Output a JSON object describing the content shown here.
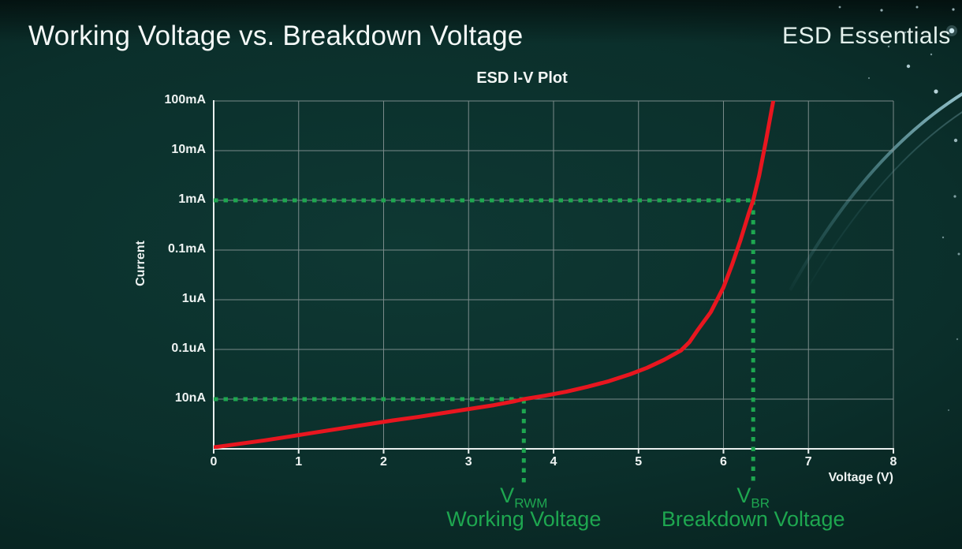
{
  "slide": {
    "title": "Working Voltage vs. Breakdown Voltage",
    "brand": "ESD Essentials"
  },
  "chart_data": {
    "type": "line",
    "title": "ESD I-V Plot",
    "xlabel": "Voltage (V)",
    "ylabel": "Current",
    "xlim": [
      0,
      8
    ],
    "x_tick_labels": [
      "0",
      "1",
      "2",
      "3",
      "4",
      "5",
      "6",
      "7",
      "8"
    ],
    "y_scale": "log",
    "grid": true,
    "legend": false,
    "y_gridlines_top_to_bottom": [
      {
        "index": 7,
        "label": "100mA"
      },
      {
        "index": 6,
        "label": "10mA"
      },
      {
        "index": 5,
        "label": "1mA"
      },
      {
        "index": 4,
        "label": "0.1mA"
      },
      {
        "index": 3,
        "label": "1uA"
      },
      {
        "index": 2,
        "label": "0.1uA"
      },
      {
        "index": 1,
        "label": "10nA"
      }
    ],
    "point_format": "[voltage_V, y_gridline_index] where index 0 = bottom axis line and 7 = top gridline (log-spaced current levels)",
    "series": [
      {
        "name": "ESD device I-V curve",
        "color": "#e8161f",
        "points": [
          [
            0,
            0.03
          ],
          [
            0.3,
            0.1
          ],
          [
            0.6,
            0.17
          ],
          [
            0.9,
            0.25
          ],
          [
            1.2,
            0.33
          ],
          [
            1.5,
            0.41
          ],
          [
            1.8,
            0.49
          ],
          [
            2.1,
            0.57
          ],
          [
            2.4,
            0.64
          ],
          [
            2.7,
            0.72
          ],
          [
            3.0,
            0.8
          ],
          [
            3.3,
            0.88
          ],
          [
            3.55,
            0.96
          ],
          [
            3.65,
            1.0
          ],
          [
            3.9,
            1.07
          ],
          [
            4.15,
            1.15
          ],
          [
            4.4,
            1.25
          ],
          [
            4.65,
            1.36
          ],
          [
            4.9,
            1.5
          ],
          [
            5.1,
            1.63
          ],
          [
            5.3,
            1.79
          ],
          [
            5.5,
            1.98
          ],
          [
            5.6,
            2.15
          ],
          [
            5.7,
            2.4
          ],
          [
            5.85,
            2.75
          ],
          [
            6.0,
            3.25
          ],
          [
            6.1,
            3.7
          ],
          [
            6.2,
            4.2
          ],
          [
            6.3,
            4.75
          ],
          [
            6.35,
            5.0
          ],
          [
            6.42,
            5.5
          ],
          [
            6.5,
            6.2
          ],
          [
            6.57,
            6.85
          ],
          [
            6.63,
            7.4
          ]
        ]
      }
    ],
    "annotations": [
      {
        "id": "vrwm",
        "label_main": "V",
        "label_sub": "RWM",
        "caption": "Working Voltage",
        "voltage": 3.65,
        "current_label": "10nA",
        "gridline_index": 1,
        "color": "#1ea750"
      },
      {
        "id": "vbr",
        "label_main": "V",
        "label_sub": "BR",
        "caption": "Breakdown Voltage",
        "voltage": 6.35,
        "current_label": "1mA",
        "gridline_index": 5,
        "color": "#1ea750"
      }
    ],
    "colors": {
      "curve": "#e8161f",
      "annotation_green": "#1ea750",
      "grid": "#8d9a9a",
      "axis": "#e9efee"
    }
  }
}
